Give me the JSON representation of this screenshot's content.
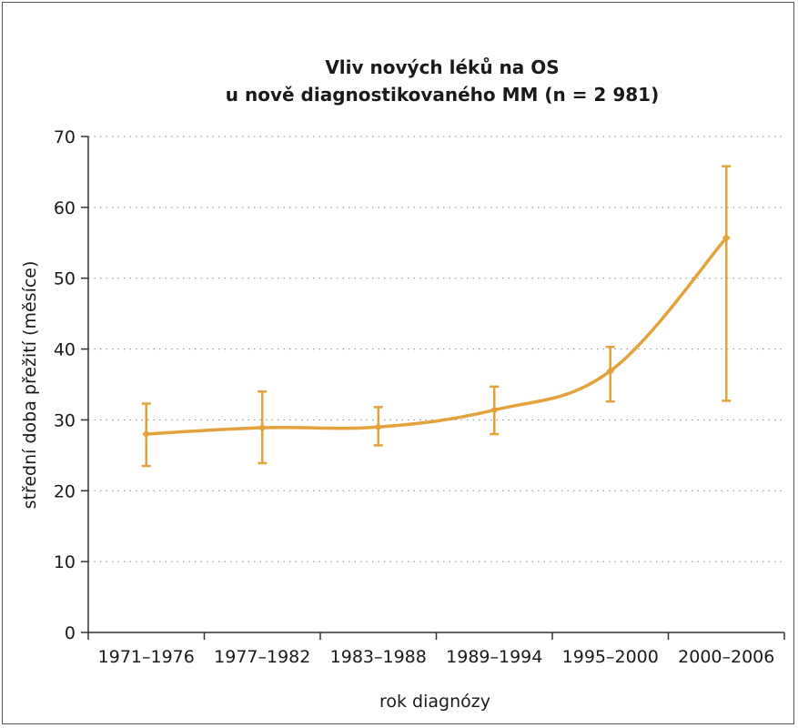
{
  "chart_data": {
    "type": "line",
    "title_lines": [
      "Vliv nových léků na OS",
      "u nově diagnostikovaného MM (n = 2 981)"
    ],
    "xlabel": "rok diagnózy",
    "ylabel": "střední doba přežití (měsíce)",
    "categories": [
      "1971–1976",
      "1977–1982",
      "1983–1988",
      "1989–1994",
      "1995–2000",
      "2000–2006"
    ],
    "ylim": [
      0,
      70
    ],
    "yticks": [
      0,
      10,
      20,
      30,
      40,
      50,
      60,
      70
    ],
    "grid": "horizontal dotted",
    "series": [
      {
        "values": [
          28.0,
          28.9,
          29.0,
          31.4,
          36.9,
          55.7
        ],
        "error_low": [
          23.5,
          23.9,
          26.4,
          28.0,
          32.6,
          32.7
        ],
        "error_high": [
          32.3,
          34.0,
          31.8,
          34.7,
          40.3,
          65.8
        ],
        "color": "#e3a23c"
      }
    ]
  }
}
